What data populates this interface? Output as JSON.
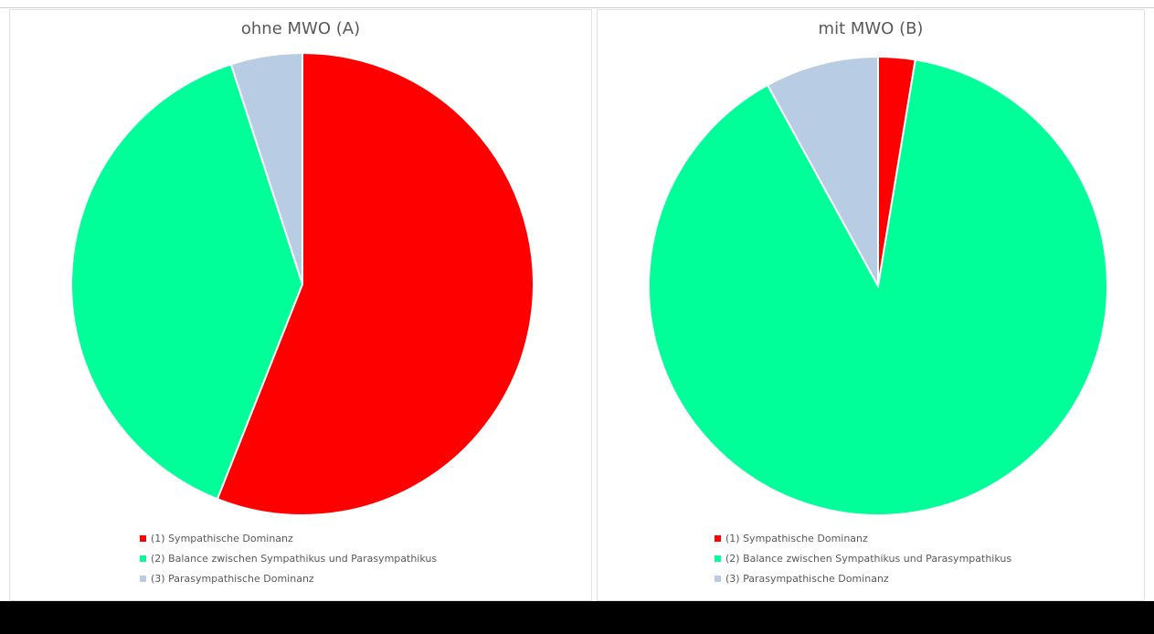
{
  "chart_data": [
    {
      "type": "pie",
      "title": "ohne MWO (A)",
      "categories": [
        "(1) Sympathische Dominanz",
        "(2) Balance zwischen Sympathikus und Parasympathikus",
        "(3) Parasympathische Dominanz"
      ],
      "values": [
        56,
        39,
        5
      ],
      "colors": [
        "#ff0000",
        "#00ff99",
        "#b8cce4"
      ],
      "legend_position": "bottom"
    },
    {
      "type": "pie",
      "title": "mit MWO (B)",
      "categories": [
        "(1) Sympathische Dominanz",
        "(2) Balance zwischen Sympathikus und Parasympathikus",
        "(3) Parasympathische Dominanz"
      ],
      "values": [
        2.6,
        89.4,
        8
      ],
      "colors": [
        "#ff0000",
        "#00ff99",
        "#b8cce4"
      ],
      "legend_position": "bottom"
    }
  ]
}
